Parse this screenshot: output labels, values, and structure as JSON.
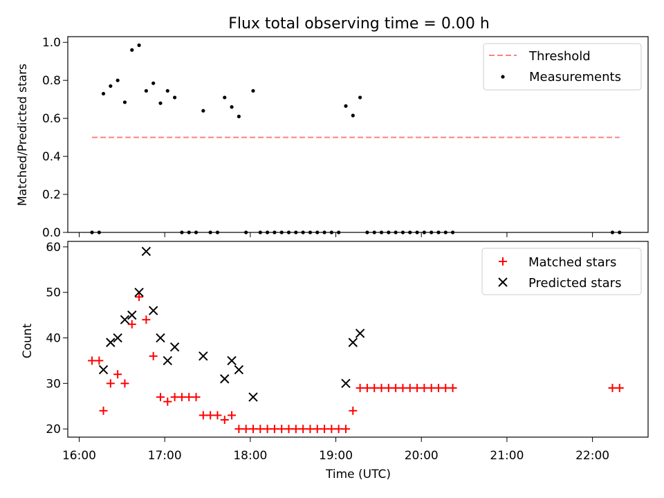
{
  "colors": {
    "threshold": "#ff7f7f",
    "measurement": "#000000",
    "matched": "#ff0000",
    "predicted": "#000000"
  },
  "chart_data": [
    {
      "type": "scatter",
      "title": "Flux total observing time = 0.00 h",
      "xlabel": "",
      "ylabel": "Matched/Predicted stars",
      "xlim": [
        "15:52",
        "22:39"
      ],
      "ylim": [
        0,
        1.03
      ],
      "yticks": [
        "0.0",
        "0.2",
        "0.4",
        "0.6",
        "0.8",
        "1.0"
      ],
      "legend_position": "top-right",
      "threshold": {
        "name": "Threshold",
        "value": 0.5,
        "x_range": [
          "16:09",
          "22:19"
        ],
        "style": "dashed"
      },
      "series": [
        {
          "name": "Measurements",
          "marker": "dot",
          "points": [
            {
              "x": "16:09",
              "y": 0.0
            },
            {
              "x": "16:14",
              "y": 0.0
            },
            {
              "x": "16:17",
              "y": 0.73
            },
            {
              "x": "16:22",
              "y": 0.77
            },
            {
              "x": "16:27",
              "y": 0.8
            },
            {
              "x": "16:32",
              "y": 0.685
            },
            {
              "x": "16:37",
              "y": 0.96
            },
            {
              "x": "16:42",
              "y": 0.985
            },
            {
              "x": "16:47",
              "y": 0.745
            },
            {
              "x": "16:52",
              "y": 0.785
            },
            {
              "x": "16:57",
              "y": 0.68
            },
            {
              "x": "17:02",
              "y": 0.745
            },
            {
              "x": "17:07",
              "y": 0.71
            },
            {
              "x": "17:12",
              "y": 0.0
            },
            {
              "x": "17:17",
              "y": 0.0
            },
            {
              "x": "17:22",
              "y": 0.0
            },
            {
              "x": "17:27",
              "y": 0.64
            },
            {
              "x": "17:32",
              "y": 0.0
            },
            {
              "x": "17:37",
              "y": 0.0
            },
            {
              "x": "17:42",
              "y": 0.71
            },
            {
              "x": "17:47",
              "y": 0.66
            },
            {
              "x": "17:52",
              "y": 0.61
            },
            {
              "x": "17:57",
              "y": 0.0
            },
            {
              "x": "18:02",
              "y": 0.745
            },
            {
              "x": "18:07",
              "y": 0.0
            },
            {
              "x": "18:12",
              "y": 0.0
            },
            {
              "x": "18:17",
              "y": 0.0
            },
            {
              "x": "18:22",
              "y": 0.0
            },
            {
              "x": "18:27",
              "y": 0.0
            },
            {
              "x": "18:32",
              "y": 0.0
            },
            {
              "x": "18:37",
              "y": 0.0
            },
            {
              "x": "18:42",
              "y": 0.0
            },
            {
              "x": "18:47",
              "y": 0.0
            },
            {
              "x": "18:52",
              "y": 0.0
            },
            {
              "x": "18:57",
              "y": 0.0
            },
            {
              "x": "19:02",
              "y": 0.0
            },
            {
              "x": "19:07",
              "y": 0.665
            },
            {
              "x": "19:12",
              "y": 0.615
            },
            {
              "x": "19:17",
              "y": 0.71
            },
            {
              "x": "19:22",
              "y": 0.0
            },
            {
              "x": "19:27",
              "y": 0.0
            },
            {
              "x": "19:32",
              "y": 0.0
            },
            {
              "x": "19:37",
              "y": 0.0
            },
            {
              "x": "19:42",
              "y": 0.0
            },
            {
              "x": "19:47",
              "y": 0.0
            },
            {
              "x": "19:52",
              "y": 0.0
            },
            {
              "x": "19:57",
              "y": 0.0
            },
            {
              "x": "20:02",
              "y": 0.0
            },
            {
              "x": "20:07",
              "y": 0.0
            },
            {
              "x": "20:12",
              "y": 0.0
            },
            {
              "x": "20:17",
              "y": 0.0
            },
            {
              "x": "20:22",
              "y": 0.0
            },
            {
              "x": "22:14",
              "y": 0.0
            },
            {
              "x": "22:19",
              "y": 0.0
            }
          ]
        }
      ]
    },
    {
      "type": "scatter",
      "title": "",
      "xlabel": "Time (UTC)",
      "ylabel": "Count",
      "xlim": [
        "15:52",
        "22:39"
      ],
      "ylim": [
        18.2,
        61.2
      ],
      "xticks": [
        "16:00",
        "17:00",
        "18:00",
        "19:00",
        "20:00",
        "21:00",
        "22:00"
      ],
      "yticks": [
        20,
        30,
        40,
        50,
        60
      ],
      "legend_position": "top-right",
      "series": [
        {
          "name": "Matched stars",
          "marker": "plus",
          "points": [
            {
              "x": "16:09",
              "y": 35
            },
            {
              "x": "16:14",
              "y": 35
            },
            {
              "x": "16:17",
              "y": 24
            },
            {
              "x": "16:22",
              "y": 30
            },
            {
              "x": "16:27",
              "y": 32
            },
            {
              "x": "16:32",
              "y": 30
            },
            {
              "x": "16:37",
              "y": 43
            },
            {
              "x": "16:42",
              "y": 49
            },
            {
              "x": "16:47",
              "y": 44
            },
            {
              "x": "16:52",
              "y": 36
            },
            {
              "x": "16:57",
              "y": 27
            },
            {
              "x": "17:02",
              "y": 26
            },
            {
              "x": "17:07",
              "y": 27
            },
            {
              "x": "17:12",
              "y": 27
            },
            {
              "x": "17:17",
              "y": 27
            },
            {
              "x": "17:22",
              "y": 27
            },
            {
              "x": "17:27",
              "y": 23
            },
            {
              "x": "17:32",
              "y": 23
            },
            {
              "x": "17:37",
              "y": 23
            },
            {
              "x": "17:42",
              "y": 22
            },
            {
              "x": "17:47",
              "y": 23
            },
            {
              "x": "17:52",
              "y": 20
            },
            {
              "x": "17:57",
              "y": 20
            },
            {
              "x": "18:02",
              "y": 20
            },
            {
              "x": "18:07",
              "y": 20
            },
            {
              "x": "18:12",
              "y": 20
            },
            {
              "x": "18:17",
              "y": 20
            },
            {
              "x": "18:22",
              "y": 20
            },
            {
              "x": "18:27",
              "y": 20
            },
            {
              "x": "18:32",
              "y": 20
            },
            {
              "x": "18:37",
              "y": 20
            },
            {
              "x": "18:42",
              "y": 20
            },
            {
              "x": "18:47",
              "y": 20
            },
            {
              "x": "18:52",
              "y": 20
            },
            {
              "x": "18:57",
              "y": 20
            },
            {
              "x": "19:02",
              "y": 20
            },
            {
              "x": "19:07",
              "y": 20
            },
            {
              "x": "19:12",
              "y": 24
            },
            {
              "x": "19:17",
              "y": 29
            },
            {
              "x": "19:22",
              "y": 29
            },
            {
              "x": "19:27",
              "y": 29
            },
            {
              "x": "19:32",
              "y": 29
            },
            {
              "x": "19:37",
              "y": 29
            },
            {
              "x": "19:42",
              "y": 29
            },
            {
              "x": "19:47",
              "y": 29
            },
            {
              "x": "19:52",
              "y": 29
            },
            {
              "x": "19:57",
              "y": 29
            },
            {
              "x": "20:02",
              "y": 29
            },
            {
              "x": "20:07",
              "y": 29
            },
            {
              "x": "20:12",
              "y": 29
            },
            {
              "x": "20:17",
              "y": 29
            },
            {
              "x": "20:22",
              "y": 29
            },
            {
              "x": "22:14",
              "y": 29
            },
            {
              "x": "22:19",
              "y": 29
            }
          ]
        },
        {
          "name": "Predicted stars",
          "marker": "x",
          "points": [
            {
              "x": "16:17",
              "y": 33
            },
            {
              "x": "16:22",
              "y": 39
            },
            {
              "x": "16:27",
              "y": 40
            },
            {
              "x": "16:32",
              "y": 44
            },
            {
              "x": "16:37",
              "y": 45
            },
            {
              "x": "16:42",
              "y": 50
            },
            {
              "x": "16:47",
              "y": 59
            },
            {
              "x": "16:52",
              "y": 46
            },
            {
              "x": "16:57",
              "y": 40
            },
            {
              "x": "17:02",
              "y": 35
            },
            {
              "x": "17:07",
              "y": 38
            },
            {
              "x": "17:27",
              "y": 36
            },
            {
              "x": "17:42",
              "y": 31
            },
            {
              "x": "17:47",
              "y": 35
            },
            {
              "x": "17:52",
              "y": 33
            },
            {
              "x": "18:02",
              "y": 27
            },
            {
              "x": "19:07",
              "y": 30
            },
            {
              "x": "19:12",
              "y": 39
            },
            {
              "x": "19:17",
              "y": 41
            }
          ]
        }
      ]
    }
  ]
}
